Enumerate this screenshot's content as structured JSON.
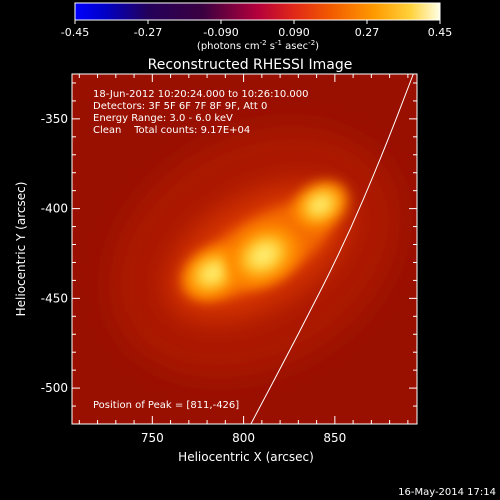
{
  "chart_data": {
    "type": "heatmap",
    "title": "Reconstructed RHESSI Image",
    "xlabel": "Heliocentric X (arcsec)",
    "ylabel": "Heliocentric Y (arcsec)",
    "xlim": [
      706,
      895
    ],
    "ylim": [
      -520,
      -325
    ],
    "x_ticks": [
      750,
      800,
      850
    ],
    "y_ticks": [
      -350,
      -400,
      -450,
      -500
    ],
    "colorbar": {
      "range": [
        -0.45,
        0.45
      ],
      "ticks": [
        "-0.45",
        "-0.27",
        "-0.090",
        "0.090",
        "0.27",
        "0.45"
      ],
      "label_main": "(photons cm",
      "label_exp1": "-2",
      "label_mid1": " s",
      "label_exp2": "-1",
      "label_mid2": " asec",
      "label_exp3": "-2",
      "label_end": ")",
      "colormap": "hot"
    },
    "info_lines": [
      "18-Jun-2012 10:20:24.000 to 10:26:10.000",
      "Detectors: 3F 5F 6F 7F 8F 9F, Att 0",
      "Energy Range: 3.0 - 6.0 keV",
      "Clean    Total counts: 9.17E+04"
    ],
    "peak_text": "Position of Peak = [811,-426]",
    "footer_date": "16-May-2014 17:14",
    "sources": [
      {
        "x": 783,
        "y": -436,
        "intensity": 0.38
      },
      {
        "x": 811,
        "y": -426,
        "intensity": 0.45
      },
      {
        "x": 842,
        "y": -398,
        "intensity": 0.34
      }
    ],
    "limb_curve": [
      [
        804,
        -520
      ],
      [
        830,
        -470
      ],
      [
        855,
        -420
      ],
      [
        876,
        -370
      ],
      [
        893,
        -325
      ]
    ]
  }
}
